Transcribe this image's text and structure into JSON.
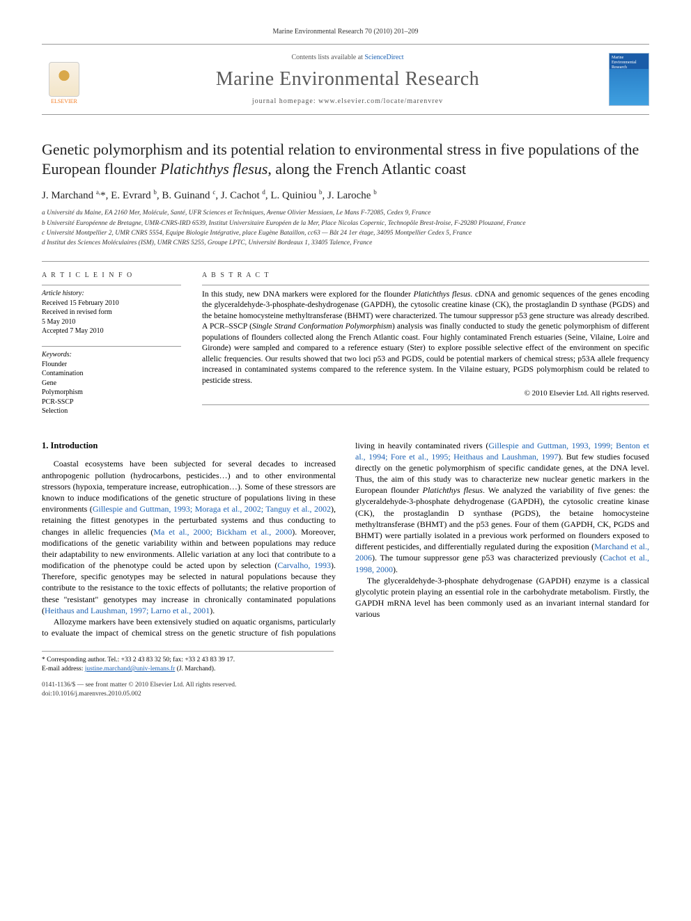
{
  "running_head": "Marine Environmental Research 70 (2010) 201–209",
  "header": {
    "contents_prefix": "Contents lists available at ",
    "contents_link": "ScienceDirect",
    "journal_name": "Marine Environmental Research",
    "homepage_prefix": "journal homepage: ",
    "homepage_url": "www.elsevier.com/locate/marenvrev",
    "publisher": "ELSEVIER",
    "cover_label": "Marine Environmental Research"
  },
  "title_html": "Genetic polymorphism and its potential relation to environmental stress in five populations of the European flounder <em>Platichthys flesus</em>, along the French Atlantic coast",
  "authors_html": "J. Marchand <sup>a,</sup>*, E. Evrard <sup>b</sup>, B. Guinand <sup>c</sup>, J. Cachot <sup>d</sup>, L. Quiniou <sup>b</sup>, J. Laroche <sup>b</sup>",
  "affiliations": [
    "a Université du Maine, EA 2160 Mer, Molécule, Santé, UFR Sciences et Techniques, Avenue Olivier Messiaen, Le Mans F-72085, Cedex 9, France",
    "b Université Européenne de Bretagne, UMR-CNRS-IRD 6539, Institut Universitaire Européen de la Mer, Place Nicolas Copernic, Technopôle Brest-Iroise, F-29280 Plouzané, France",
    "c Université Montpellier 2, UMR CNRS 5554, Equipe Biologie Intégrative, place Eugène Bataillon, cc63 — Bât 24 1er étage, 34095 Montpellier Cedex 5, France",
    "d Institut des Sciences Moléculaires (ISM), UMR CNRS 5255, Groupe LPTC, Université Bordeaux 1, 33405 Talence, France"
  ],
  "article_info": {
    "heading": "A R T I C L E   I N F O",
    "history_label": "Article history:",
    "history": [
      "Received 15 February 2010",
      "Received in revised form",
      "5 May 2010",
      "Accepted 7 May 2010"
    ],
    "keywords_label": "Keywords:",
    "keywords": [
      "Flounder",
      "Contamination",
      "Gene",
      "Polymorphism",
      "PCR-SSCP",
      "Selection"
    ]
  },
  "abstract": {
    "heading": "A B S T R A C T",
    "text_html": "In this study, new DNA markers were explored for the flounder <em>Platichthys flesus</em>. cDNA and genomic sequences of the genes encoding the glyceraldehyde-3-phosphate-deshydrogenase (GAPDH), the cytosolic creatine kinase (CK), the prostaglandin D synthase (PGDS) and the betaine homocysteine methyltransferase (BHMT) were characterized. The tumour suppressor p53 gene structure was already described. A PCR–SSCP (<em>Single Strand Conformation Polymorphism</em>) analysis was finally conducted to study the genetic polymorphism of different populations of flounders collected along the French Atlantic coast. Four highly contaminated French estuaries (Seine, Vilaine, Loire and Gironde) were sampled and compared to a reference estuary (Ster) to explore possible selective effect of the environment on specific allelic frequencies. Our results showed that two loci p53 and PGDS, could be potential markers of chemical stress; p53A allele frequency increased in contaminated systems compared to the reference system. In the Vilaine estuary, PGDS polymorphism could be related to pesticide stress.",
    "copyright": "© 2010 Elsevier Ltd. All rights reserved."
  },
  "body": {
    "section_heading": "1. Introduction",
    "p1_html": "Coastal ecosystems have been subjected for several decades to increased anthropogenic pollution (hydrocarbons, pesticides…) and to other environmental stressors (hypoxia, temperature increase, eutrophication…). Some of these stressors are known to induce modifications of the genetic structure of populations living in these environments (<span class=\"cite\">Gillespie and Guttman, 1993; Moraga et al., 2002; Tanguy et al., 2002</span>), retaining the fittest genotypes in the perturbated systems and thus conducting to changes in allelic frequencies (<span class=\"cite\">Ma et al., 2000; Bickham et al., 2000</span>). Moreover, modifications of the genetic variability within and between populations may reduce their adaptability to new environments. Allelic variation at any loci that contribute to a modification of the phenotype could be acted upon by selection (<span class=\"cite\">Carvalho, 1993</span>). Therefore, specific genotypes may be selected in natural populations because they contribute to the resistance to the toxic effects of pollutants; the relative proportion of these \"resistant\" genotypes may increase in chronically contaminated populations (<span class=\"cite\">Heithaus and Laushman, 1997; Larno et al., 2001</span>).",
    "p2_html": "Allozyme markers have been extensively studied on aquatic organisms, particularly to evaluate the impact of chemical stress on the genetic structure of fish populations living in heavily contaminated rivers (<span class=\"cite\">Gillespie and Guttman, 1993, 1999; Benton et al., 1994; Fore et al., 1995; Heithaus and Laushman, 1997</span>). But few studies focused directly on the genetic polymorphism of specific candidate genes, at the DNA level. Thus, the aim of this study was to characterize new nuclear genetic markers in the European flounder <em>Platichthys flesus</em>. We analyzed the variability of five genes: the glyceraldehyde-3-phosphate dehydrogenase (GAPDH), the cytosolic creatine kinase (CK), the prostaglandin D synthase (PGDS), the betaine homocysteine methyltransferase (BHMT) and the p53 genes. Four of them (GAPDH, CK, PGDS and BHMT) were partially isolated in a previous work performed on flounders exposed to different pesticides, and differentially regulated during the exposition (<span class=\"cite\">Marchand et al., 2006</span>). The tumour suppressor gene p53 was characterized previously (<span class=\"cite\">Cachot et al., 1998, 2000</span>).",
    "p3_html": "The glyceraldehyde-3-phosphate dehydrogenase (GAPDH) enzyme is a classical glycolytic protein playing an essential role in the carbohydrate metabolism. Firstly, the GAPDH mRNA level has been commonly used as an invariant internal standard for various"
  },
  "footnote": {
    "corr_line": "* Corresponding author. Tel.: +33 2 43 83 32 50; fax: +33 2 43 83 39 17.",
    "email_label": "E-mail address: ",
    "email": "justine.marchand@univ-lemans.fr",
    "email_suffix": " (J. Marchand)."
  },
  "footer": {
    "line1": "0141-1136/$ — see front matter © 2010 Elsevier Ltd. All rights reserved.",
    "line2": "doi:10.1016/j.marenvres.2010.05.002"
  },
  "colors": {
    "link": "#1b61b3",
    "elsevier_orange": "#f47b20",
    "rule": "#999999"
  }
}
